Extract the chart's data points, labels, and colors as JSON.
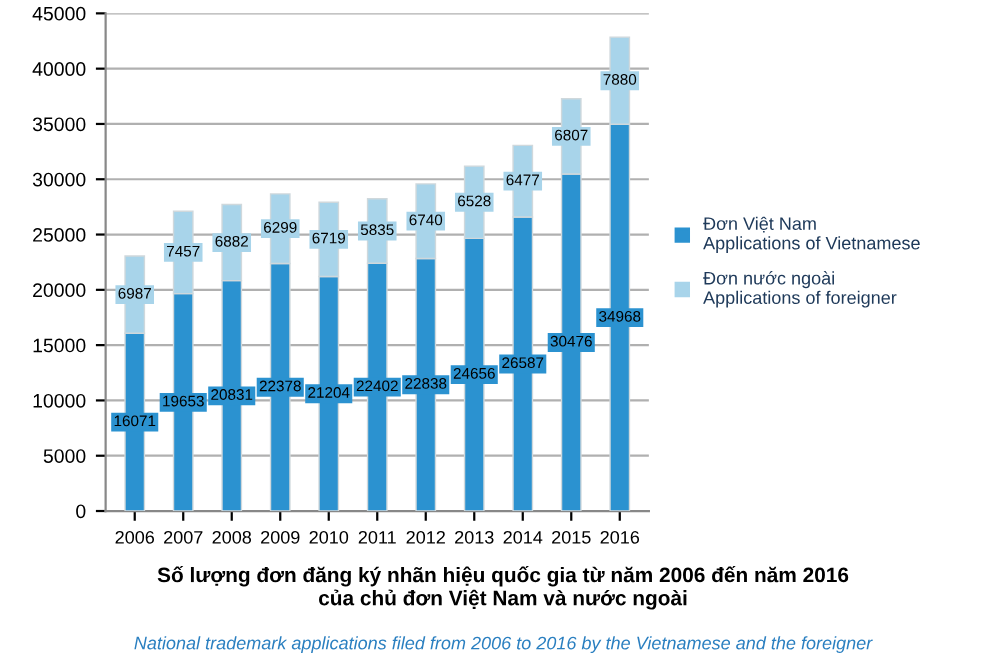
{
  "chart_data": {
    "type": "bar",
    "stacked": true,
    "title": "Số lượng đơn đăng ký nhãn hiệu quốc gia từ năm 2006 đến năm 2016\ncủa chủ đơn Việt Nam và nước ngoài",
    "subtitle": "National trademark applications filed from 2006 to 2016 by the Vietnamese and the foreigner",
    "categories": [
      "2006",
      "2007",
      "2008",
      "2009",
      "2010",
      "2011",
      "2012",
      "2013",
      "2014",
      "2015",
      "2016"
    ],
    "series": [
      {
        "name": "Đơn Việt Nam\nApplications of Vietnamese",
        "color": "#2b92d0",
        "values": [
          16071,
          19653,
          20831,
          22378,
          21204,
          22402,
          22838,
          24656,
          26587,
          30476,
          34968
        ]
      },
      {
        "name": "Đơn nước ngoài\nApplications of foreigner",
        "color": "#a8d4ea",
        "values": [
          6987,
          7457,
          6882,
          6299,
          6719,
          5835,
          6740,
          6528,
          6477,
          6807,
          7880
        ]
      }
    ],
    "ylim": [
      0,
      45000
    ],
    "yticks": [
      0,
      5000,
      10000,
      15000,
      20000,
      25000,
      30000,
      35000,
      40000,
      45000
    ],
    "grid": "y",
    "legend": "right",
    "data_labels": true
  }
}
